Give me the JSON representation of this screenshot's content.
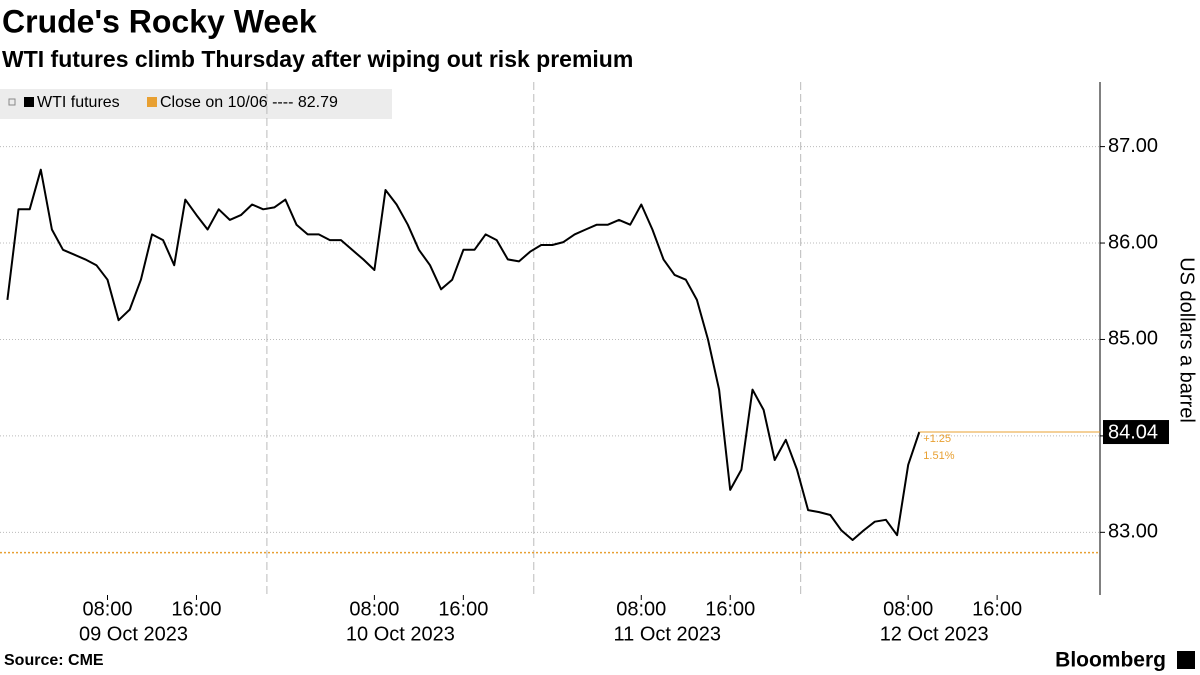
{
  "chart_data": {
    "type": "line",
    "title": "Crude's Rocky Week",
    "subtitle": "WTI futures climb Thursday after wiping out risk premium",
    "y_label": "US dollars a barrel",
    "source": "Source: CME",
    "brand": "Bloomberg",
    "x": [
      "2023-10-08T23:00",
      "2023-10-09T00:00",
      "2023-10-09T01:00",
      "2023-10-09T02:00",
      "2023-10-09T03:00",
      "2023-10-09T04:00",
      "2023-10-09T05:00",
      "2023-10-09T06:00",
      "2023-10-09T07:00",
      "2023-10-09T08:00",
      "2023-10-09T09:00",
      "2023-10-09T10:00",
      "2023-10-09T11:00",
      "2023-10-09T12:00",
      "2023-10-09T13:00",
      "2023-10-09T14:00",
      "2023-10-09T15:00",
      "2023-10-09T16:00",
      "2023-10-09T17:00",
      "2023-10-09T18:00",
      "2023-10-09T19:00",
      "2023-10-09T20:00",
      "2023-10-09T21:00",
      "2023-10-09T22:00",
      "2023-10-09T23:00",
      "2023-10-10T00:00",
      "2023-10-10T01:00",
      "2023-10-10T02:00",
      "2023-10-10T03:00",
      "2023-10-10T04:00",
      "2023-10-10T05:00",
      "2023-10-10T06:00",
      "2023-10-10T07:00",
      "2023-10-10T08:00",
      "2023-10-10T09:00",
      "2023-10-10T10:00",
      "2023-10-10T11:00",
      "2023-10-10T12:00",
      "2023-10-10T13:00",
      "2023-10-10T14:00",
      "2023-10-10T15:00",
      "2023-10-10T16:00",
      "2023-10-10T17:00",
      "2023-10-10T18:00",
      "2023-10-10T19:00",
      "2023-10-10T20:00",
      "2023-10-10T21:00",
      "2023-10-10T22:00",
      "2023-10-10T23:00",
      "2023-10-11T00:00",
      "2023-10-11T01:00",
      "2023-10-11T02:00",
      "2023-10-11T03:00",
      "2023-10-11T04:00",
      "2023-10-11T05:00",
      "2023-10-11T06:00",
      "2023-10-11T07:00",
      "2023-10-11T08:00",
      "2023-10-11T09:00",
      "2023-10-11T10:00",
      "2023-10-11T11:00",
      "2023-10-11T12:00",
      "2023-10-11T13:00",
      "2023-10-11T14:00",
      "2023-10-11T15:00",
      "2023-10-11T16:00",
      "2023-10-11T17:00",
      "2023-10-11T18:00",
      "2023-10-11T19:00",
      "2023-10-11T20:00",
      "2023-10-11T21:00",
      "2023-10-11T22:00",
      "2023-10-11T23:00",
      "2023-10-12T00:00",
      "2023-10-12T01:00",
      "2023-10-12T02:00",
      "2023-10-12T03:00",
      "2023-10-12T04:00",
      "2023-10-12T05:00",
      "2023-10-12T06:00",
      "2023-10-12T07:00",
      "2023-10-12T08:00",
      "2023-10-12T09:00"
    ],
    "series": [
      {
        "name": "WTI futures",
        "color": "#000000",
        "values": [
          85.41,
          86.35,
          86.35,
          86.76,
          86.14,
          85.93,
          85.88,
          85.83,
          85.77,
          85.62,
          85.2,
          85.31,
          85.62,
          86.09,
          86.03,
          85.77,
          86.45,
          86.29,
          86.14,
          86.35,
          86.24,
          86.29,
          86.4,
          86.35,
          86.37,
          86.45,
          86.19,
          86.09,
          86.09,
          86.03,
          86.03,
          85.93,
          85.83,
          85.72,
          86.55,
          86.4,
          86.19,
          85.93,
          85.77,
          85.52,
          85.62,
          85.93,
          85.93,
          86.09,
          86.03,
          85.83,
          85.81,
          85.91,
          85.98,
          85.98,
          86.01,
          86.09,
          86.14,
          86.19,
          86.19,
          86.24,
          86.19,
          86.4,
          86.14,
          85.83,
          85.67,
          85.62,
          85.41,
          85.0,
          84.48,
          83.44,
          83.65,
          84.48,
          84.27,
          83.75,
          83.96,
          83.65,
          83.23,
          83.21,
          83.18,
          83.02,
          82.92,
          83.02,
          83.11,
          83.13,
          82.97,
          83.7,
          84.04
        ]
      }
    ],
    "reference": {
      "label": "Close on 10/06 ---- 82.79",
      "value": 82.79,
      "color": "#e8a032"
    },
    "change_labels": [
      "+1.25",
      "1.51%"
    ],
    "xlim": [
      "2023-10-08T22:20",
      "2023-10-13T01:15"
    ],
    "xticks": [
      {
        "value": "2023-10-09T08:00",
        "label": "08:00"
      },
      {
        "value": "2023-10-09T16:00",
        "label": "16:00"
      },
      {
        "value": "2023-10-10T08:00",
        "label": "08:00"
      },
      {
        "value": "2023-10-10T16:00",
        "label": "16:00"
      },
      {
        "value": "2023-10-11T08:00",
        "label": "08:00"
      },
      {
        "value": "2023-10-11T16:00",
        "label": "16:00"
      },
      {
        "value": "2023-10-12T08:00",
        "label": "08:00"
      },
      {
        "value": "2023-10-12T16:00",
        "label": "16:00"
      }
    ],
    "xdates": [
      {
        "value": "2023-10-09T08:00",
        "label": "09 Oct 2023"
      },
      {
        "value": "2023-10-10T08:00",
        "label": "10 Oct 2023"
      },
      {
        "value": "2023-10-11T08:00",
        "label": "11 Oct 2023"
      },
      {
        "value": "2023-10-12T08:00",
        "label": "12 Oct 2023"
      }
    ],
    "xgrid": [
      "2023-10-09T22:20",
      "2023-10-10T22:20",
      "2023-10-11T22:20"
    ],
    "ylim": [
      82.35,
      87.67
    ],
    "yticks": [
      {
        "value": 83,
        "label": "83.00"
      },
      {
        "value": 84,
        "label": "84.00"
      },
      {
        "value": 85,
        "label": "85.00"
      },
      {
        "value": 86,
        "label": "86.00"
      },
      {
        "value": 87,
        "label": "87.00"
      }
    ],
    "grid": true
  }
}
